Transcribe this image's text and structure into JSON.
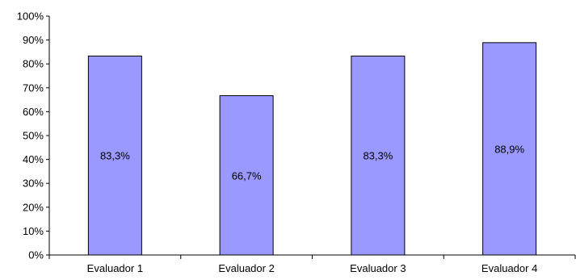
{
  "chart_data": {
    "type": "bar",
    "categories": [
      "Evaluador 1",
      "Evaluador 2",
      "Evaluador 3",
      "Evaluador 4"
    ],
    "values": [
      83.3,
      66.7,
      83.3,
      88.9
    ],
    "data_labels": [
      "83,3%",
      "66,7%",
      "83,3%",
      "88,9%"
    ],
    "y_tick_labels": [
      "0%",
      "10%",
      "20%",
      "30%",
      "40%",
      "50%",
      "60%",
      "70%",
      "80%",
      "90%",
      "100%"
    ],
    "ylim": [
      0,
      100
    ],
    "grid": false,
    "legend": "none",
    "title": "",
    "xlabel": "",
    "ylabel": "",
    "colors": {
      "bar_fill": "#9999FF",
      "bar_stroke": "#000000",
      "axis": "#000000",
      "text": "#000000"
    }
  }
}
